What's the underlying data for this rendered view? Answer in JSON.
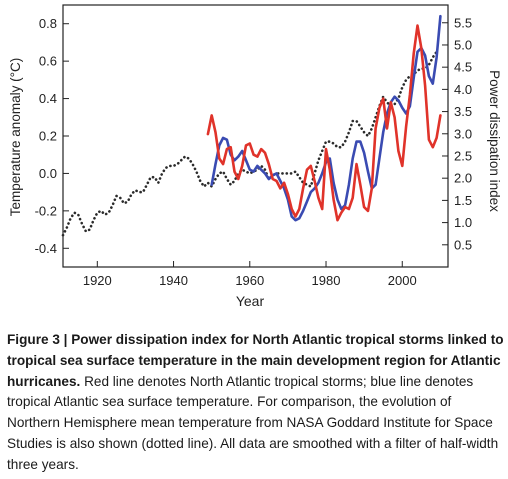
{
  "chart_data": {
    "type": "line",
    "xlabel": "Year",
    "ylabel_left": "Temperature anomaly (°C)",
    "ylabel_right": "Power dissipation index",
    "xlim": [
      1911,
      2012
    ],
    "ylim_left": [
      -0.5,
      0.9
    ],
    "ylim_right": [
      0.0,
      5.9
    ],
    "x_ticks": [
      1920,
      1940,
      1960,
      1980,
      2000
    ],
    "y_ticks_left": [
      -0.4,
      -0.2,
      0.0,
      0.2,
      0.4,
      0.6,
      0.8
    ],
    "y_ticks_right": [
      0.5,
      1.0,
      1.5,
      2.0,
      2.5,
      3.0,
      3.5,
      4.0,
      4.5,
      5.0,
      5.5
    ],
    "grid": false,
    "series": [
      {
        "axis": "left",
        "color": "#2b2b2b",
        "style": "dotted",
        "x": [
          1911,
          1912,
          1913,
          1914,
          1915,
          1916,
          1917,
          1918,
          1919,
          1920,
          1921,
          1922,
          1923,
          1924,
          1925,
          1926,
          1927,
          1928,
          1929,
          1930,
          1931,
          1932,
          1933,
          1934,
          1935,
          1936,
          1937,
          1938,
          1939,
          1940,
          1941,
          1942,
          1943,
          1944,
          1945,
          1946,
          1947,
          1948,
          1949,
          1950,
          1951,
          1952,
          1953,
          1954,
          1955,
          1956,
          1957,
          1958,
          1959,
          1960,
          1961,
          1962,
          1963,
          1964,
          1965,
          1966,
          1967,
          1968,
          1969,
          1970,
          1971,
          1972,
          1973,
          1974,
          1975,
          1976,
          1977,
          1978,
          1979,
          1980,
          1981,
          1982,
          1983,
          1984,
          1985,
          1986,
          1987,
          1988,
          1989,
          1990,
          1991,
          1992,
          1993,
          1994,
          1995,
          1996,
          1997,
          1998,
          1999,
          2000,
          2001,
          2002,
          2003,
          2004,
          2005,
          2006,
          2007,
          2008,
          2009
        ],
        "y": [
          -0.33,
          -0.29,
          -0.24,
          -0.21,
          -0.22,
          -0.27,
          -0.31,
          -0.3,
          -0.25,
          -0.21,
          -0.2,
          -0.22,
          -0.21,
          -0.17,
          -0.12,
          -0.13,
          -0.16,
          -0.15,
          -0.11,
          -0.09,
          -0.1,
          -0.1,
          -0.06,
          -0.02,
          -0.02,
          -0.05,
          0.0,
          0.03,
          0.04,
          0.04,
          0.05,
          0.07,
          0.09,
          0.08,
          0.05,
          0.01,
          -0.04,
          -0.07,
          -0.05,
          -0.07,
          -0.03,
          0.0,
          0.01,
          -0.03,
          -0.06,
          -0.04,
          0.0,
          0.02,
          0.01,
          0.0,
          0.01,
          0.02,
          0.04,
          0.02,
          -0.03,
          -0.01,
          0.0,
          0.0,
          0.0,
          0.0,
          0.0,
          0.01,
          -0.02,
          -0.05,
          -0.06,
          -0.07,
          0.0,
          0.07,
          0.12,
          0.17,
          0.17,
          0.16,
          0.14,
          0.14,
          0.17,
          0.22,
          0.28,
          0.28,
          0.25,
          0.22,
          0.2,
          0.24,
          0.3,
          0.36,
          0.41,
          0.38,
          0.36,
          0.37,
          0.4,
          0.46,
          0.5,
          0.52,
          0.53,
          0.55,
          0.56,
          0.56,
          0.58,
          0.62,
          0.65
        ]
      },
      {
        "axis": "left",
        "color": "#3a4bb2",
        "style": "solid",
        "x": [
          1950,
          1951,
          1952,
          1953,
          1954,
          1955,
          1956,
          1957,
          1958,
          1959,
          1960,
          1961,
          1962,
          1963,
          1964,
          1965,
          1966,
          1967,
          1968,
          1969,
          1970,
          1971,
          1972,
          1973,
          1974,
          1975,
          1976,
          1977,
          1978,
          1979,
          1980,
          1981,
          1982,
          1983,
          1984,
          1985,
          1986,
          1987,
          1988,
          1989,
          1990,
          1991,
          1992,
          1993,
          1994,
          1995,
          1996,
          1997,
          1998,
          1999,
          2000,
          2001,
          2002,
          2003,
          2004,
          2005,
          2006,
          2007,
          2008,
          2009,
          2010
        ],
        "y": [
          -0.06,
          0.05,
          0.15,
          0.19,
          0.18,
          0.1,
          0.07,
          0.09,
          0.12,
          0.07,
          0.02,
          0.01,
          0.04,
          0.02,
          0.0,
          -0.03,
          -0.01,
          0.0,
          -0.04,
          -0.08,
          -0.14,
          -0.23,
          -0.25,
          -0.24,
          -0.2,
          -0.15,
          -0.1,
          -0.08,
          -0.05,
          0.0,
          0.06,
          0.08,
          -0.05,
          -0.14,
          -0.19,
          -0.17,
          -0.06,
          0.08,
          0.17,
          0.17,
          0.11,
          0.01,
          -0.08,
          -0.06,
          0.08,
          0.22,
          0.32,
          0.38,
          0.41,
          0.39,
          0.35,
          0.32,
          0.36,
          0.51,
          0.65,
          0.67,
          0.63,
          0.52,
          0.48,
          0.62,
          0.84
        ]
      },
      {
        "axis": "left",
        "color": "#e0332a",
        "style": "solid",
        "x": [
          1949,
          1950,
          1951,
          1952,
          1953,
          1954,
          1955,
          1956,
          1957,
          1958,
          1959,
          1960,
          1961,
          1962,
          1963,
          1964,
          1965,
          1966,
          1967,
          1968,
          1969,
          1970,
          1971,
          1972,
          1973,
          1974,
          1975,
          1976,
          1977,
          1978,
          1979,
          1980,
          1981,
          1982,
          1983,
          1984,
          1985,
          1986,
          1987,
          1988,
          1989,
          1990,
          1991,
          1992,
          1993,
          1994,
          1995,
          1996,
          1997,
          1998,
          1999,
          2000,
          2001,
          2002,
          2003,
          2004,
          2005,
          2006,
          2007,
          2008,
          2009,
          2010
        ],
        "y": [
          0.21,
          0.31,
          0.22,
          0.08,
          0.05,
          0.13,
          0.14,
          0.01,
          -0.03,
          0.04,
          0.15,
          0.16,
          0.1,
          0.09,
          0.13,
          0.11,
          0.05,
          -0.03,
          -0.04,
          -0.08,
          -0.05,
          -0.11,
          -0.19,
          -0.23,
          -0.19,
          -0.08,
          0.02,
          0.04,
          -0.04,
          -0.13,
          -0.19,
          0.13,
          0.02,
          -0.14,
          -0.25,
          -0.21,
          -0.18,
          -0.19,
          -0.13,
          0.05,
          -0.06,
          -0.18,
          -0.2,
          -0.08,
          0.24,
          0.35,
          0.4,
          0.24,
          0.38,
          0.3,
          0.12,
          0.04,
          0.25,
          0.42,
          0.64,
          0.79,
          0.67,
          0.47,
          0.18,
          0.14,
          0.19,
          0.31
        ]
      }
    ]
  },
  "caption": {
    "label": "Figure 3 | ",
    "title": "Power dissipation index for North Atlantic tropical storms linked to tropical sea surface temperature in the main development region for Atlantic hurricanes.",
    "body": " Red line denotes North Atlantic tropical storms; blue line denotes tropical Atlantic sea surface temperature. For comparison, the evolution of Northern Hemisphere mean temperature from NASA Goddard Institute for Space Studies is also shown (dotted line). All data are smoothed with a filter of half-width three years."
  }
}
